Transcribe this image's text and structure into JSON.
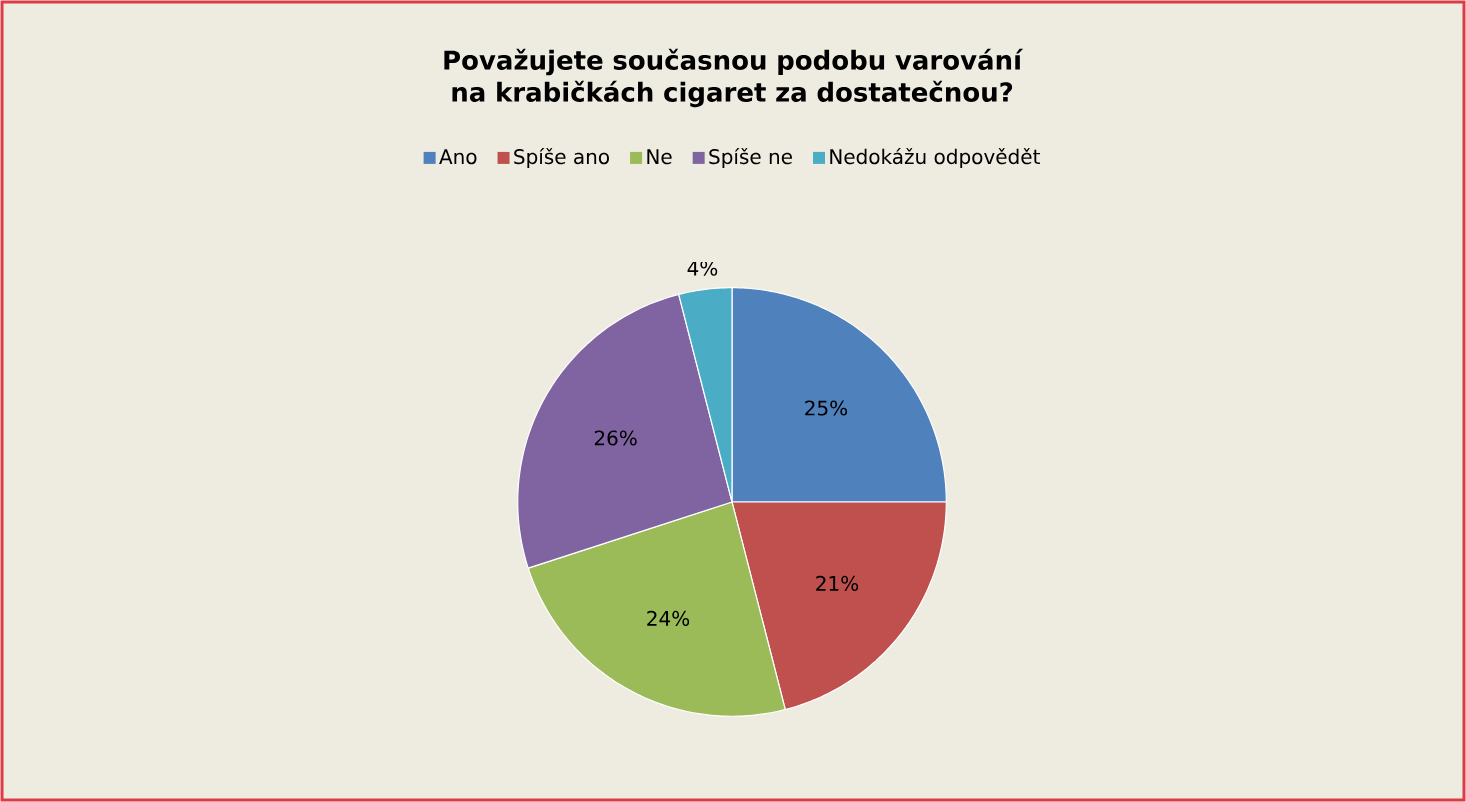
{
  "chart_data": {
    "type": "pie",
    "title": "Považujete současnou podobu varování na krabičkách cigaret za dostatečnou?",
    "categories": [
      "Ano",
      "Spíše ano",
      "Ne",
      "Spíše ne",
      "Nedokážu odpovědět"
    ],
    "values": [
      25,
      21,
      24,
      26,
      4
    ],
    "value_labels": [
      "25%",
      "21%",
      "24%",
      "26%",
      "4%"
    ],
    "colors": [
      "#4f81bd",
      "#c0504d",
      "#9bbb59",
      "#8064a2",
      "#4bacc6"
    ],
    "legend": "top"
  }
}
